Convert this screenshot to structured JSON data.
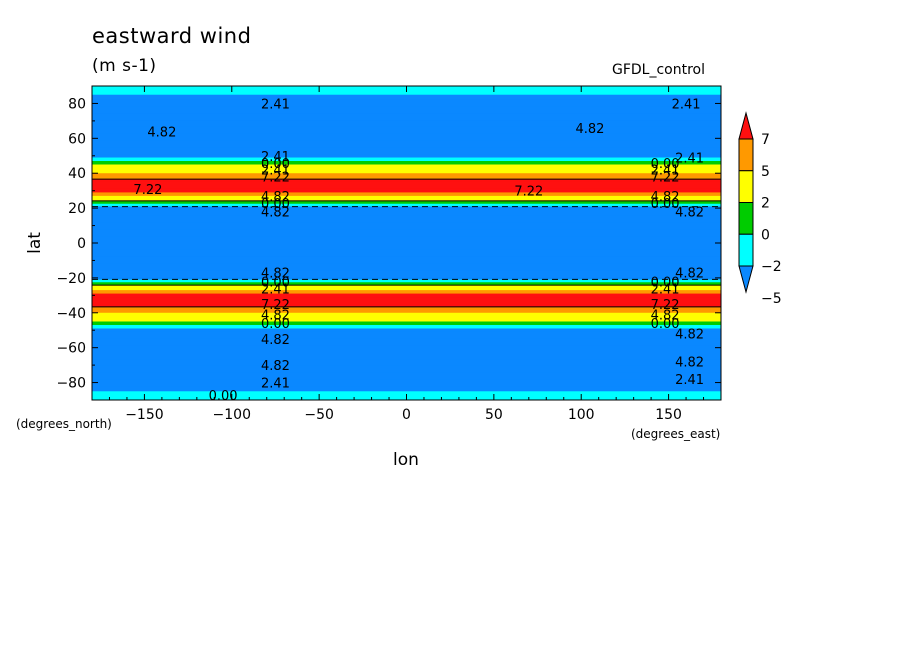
{
  "title": "eastward wind",
  "units": "(m s-1)",
  "dataset_label": "GFDL_control",
  "chart_data": {
    "type": "heatmap",
    "title": "eastward wind",
    "subtitle": "(m s-1)",
    "xlabel": "lon",
    "ylabel": "lat",
    "x_units": "(degrees_east)",
    "y_units": "(degrees_north)",
    "xlim": [
      -180,
      180
    ],
    "ylim": [
      -90,
      90
    ],
    "x_ticks": [
      -150,
      -100,
      -50,
      0,
      50,
      100,
      150
    ],
    "x_tick_labels": [
      "−150",
      "−100",
      "−50",
      "0",
      "50",
      "100",
      "150"
    ],
    "y_ticks": [
      -80,
      -60,
      -40,
      -20,
      0,
      20,
      40,
      60,
      80
    ],
    "y_tick_labels": [
      "−80",
      "−60",
      "−40",
      "−20",
      "0",
      "20",
      "40",
      "60",
      "80"
    ],
    "colorbar": {
      "levels": [
        7,
        5,
        2,
        0,
        -2,
        -5
      ],
      "level_labels": [
        "7",
        "5",
        "2",
        "0",
        "−2",
        "−5"
      ],
      "colors": [
        "#ff1010",
        "#ff9900",
        "#ffff00",
        "#00cc00",
        "#00ffff",
        "#0a88ff"
      ],
      "extend": "both"
    },
    "zonal_profile": [
      {
        "lat": 90,
        "value": -1
      },
      {
        "lat": 80,
        "value": -3
      },
      {
        "lat": 70,
        "value": -4
      },
      {
        "lat": 60,
        "value": -5
      },
      {
        "lat": 50,
        "value": -3
      },
      {
        "lat": 45,
        "value": 2
      },
      {
        "lat": 40,
        "value": 5
      },
      {
        "lat": 35,
        "value": 8
      },
      {
        "lat": 30,
        "value": 8
      },
      {
        "lat": 25,
        "value": 3
      },
      {
        "lat": 20,
        "value": -3
      },
      {
        "lat": 10,
        "value": -5
      },
      {
        "lat": 0,
        "value": -5
      },
      {
        "lat": -10,
        "value": -5
      },
      {
        "lat": -20,
        "value": -3
      },
      {
        "lat": -25,
        "value": 3
      },
      {
        "lat": -30,
        "value": 8
      },
      {
        "lat": -35,
        "value": 8
      },
      {
        "lat": -40,
        "value": 5
      },
      {
        "lat": -45,
        "value": 2
      },
      {
        "lat": -50,
        "value": -3
      },
      {
        "lat": -60,
        "value": -5
      },
      {
        "lat": -70,
        "value": -4
      },
      {
        "lat": -80,
        "value": -3
      },
      {
        "lat": -90,
        "value": -1
      }
    ],
    "contour_labels": [
      {
        "text": "2.41",
        "lon": -75,
        "lat": 80
      },
      {
        "text": "2.41",
        "lon": 160,
        "lat": 80
      },
      {
        "text": "4.82",
        "lon": -140,
        "lat": 64
      },
      {
        "text": "4.82",
        "lon": 105,
        "lat": 66
      },
      {
        "text": "2.41",
        "lon": -75,
        "lat": 50
      },
      {
        "text": "2.41",
        "lon": 162,
        "lat": 49
      },
      {
        "text": "0.00",
        "lon": -75,
        "lat": 46
      },
      {
        "text": "0.00",
        "lon": 148,
        "lat": 46
      },
      {
        "text": "2.41",
        "lon": -75,
        "lat": 42
      },
      {
        "text": "2.41",
        "lon": 148,
        "lat": 42
      },
      {
        "text": "7.22",
        "lon": -75,
        "lat": 38
      },
      {
        "text": "7.22",
        "lon": 148,
        "lat": 38
      },
      {
        "text": "7.22",
        "lon": -148,
        "lat": 31
      },
      {
        "text": "7.22",
        "lon": 70,
        "lat": 30
      },
      {
        "text": "4.82",
        "lon": -75,
        "lat": 27
      },
      {
        "text": "4.82",
        "lon": 148,
        "lat": 27
      },
      {
        "text": "0.00",
        "lon": -75,
        "lat": 23
      },
      {
        "text": "0.00",
        "lon": 148,
        "lat": 23
      },
      {
        "text": "4.82",
        "lon": -75,
        "lat": 18
      },
      {
        "text": "4.82",
        "lon": 162,
        "lat": 18
      },
      {
        "text": "4.82",
        "lon": -75,
        "lat": -17
      },
      {
        "text": "4.82",
        "lon": 162,
        "lat": -17
      },
      {
        "text": "0.00",
        "lon": -75,
        "lat": -22
      },
      {
        "text": "0.00",
        "lon": 148,
        "lat": -22
      },
      {
        "text": "2.41",
        "lon": -75,
        "lat": -26
      },
      {
        "text": "2.41",
        "lon": 148,
        "lat": -26
      },
      {
        "text": "7.22",
        "lon": -75,
        "lat": -35
      },
      {
        "text": "7.22",
        "lon": 148,
        "lat": -35
      },
      {
        "text": "4.82",
        "lon": -75,
        "lat": -41
      },
      {
        "text": "4.82",
        "lon": 148,
        "lat": -41
      },
      {
        "text": "0.00",
        "lon": -75,
        "lat": -46
      },
      {
        "text": "0.00",
        "lon": 148,
        "lat": -46
      },
      {
        "text": "4.82",
        "lon": -75,
        "lat": -55
      },
      {
        "text": "4.82",
        "lon": 162,
        "lat": -52
      },
      {
        "text": "4.82",
        "lon": -75,
        "lat": -70
      },
      {
        "text": "4.82",
        "lon": 162,
        "lat": -68
      },
      {
        "text": "2.41",
        "lon": -75,
        "lat": -80
      },
      {
        "text": "2.41",
        "lon": 162,
        "lat": -78
      },
      {
        "text": "0.00",
        "lon": -105,
        "lat": -87
      }
    ]
  }
}
